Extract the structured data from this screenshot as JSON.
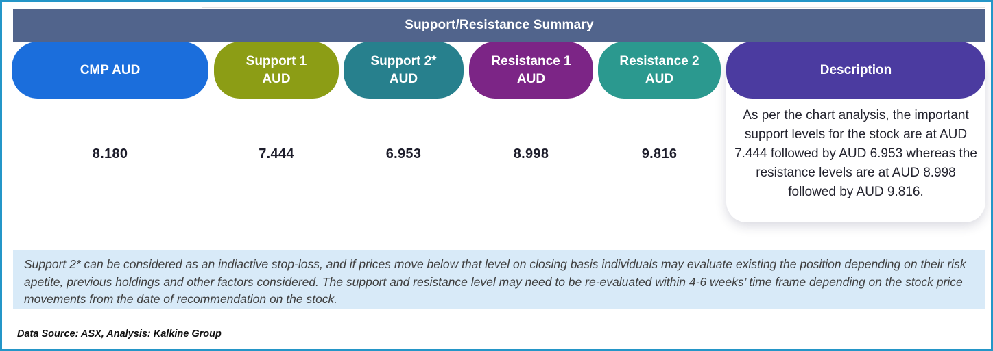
{
  "header": {
    "title": "Support/Resistance Summary",
    "bg_color": "#51648C"
  },
  "table": {
    "columns": [
      {
        "label": "CMP AUD",
        "value": "8.180",
        "color": "#1B6EDC"
      },
      {
        "label": "Support 1\nAUD",
        "value": "7.444",
        "color": "#8C9D15"
      },
      {
        "label": "Support 2*\nAUD",
        "value": "6.953",
        "color": "#27808D"
      },
      {
        "label": "Resistance 1\nAUD",
        "value": "8.998",
        "color": "#7C2586"
      },
      {
        "label": "Resistance 2\nAUD",
        "value": "9.816",
        "color": "#2B998F"
      }
    ],
    "description": {
      "label": "Description",
      "color": "#4B3BA0",
      "text": "As per the chart analysis, the important support levels for the stock are at AUD 7.444 followed by AUD 6.953 whereas the resistance levels are at AUD 8.998 followed by AUD 9.816."
    }
  },
  "note": "Support 2* can be considered as an indiactive stop-loss, and if prices move below that level on closing basis individuals may evaluate existing the position depending on their risk apetite, previous holdings and other factors considered. The support and resistance level may need to be re-evaluated within 4-6 weeks’ time frame depending on the stock price movements from  the date of recommendation on the stock.",
  "source": "Data Source: ASX, Analysis: Kalkine Group",
  "colors": {
    "border": "#2496C8",
    "note_bg": "#D8EAF8"
  }
}
